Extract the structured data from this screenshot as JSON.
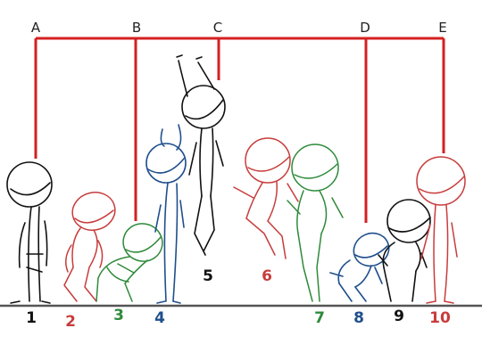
{
  "keyframe_labels": [
    "A",
    "B",
    "C",
    "D",
    "E"
  ],
  "frame_numbers": [
    "1",
    "2",
    "3",
    "4",
    "5",
    "6",
    "7",
    "8",
    "9",
    "10"
  ],
  "colors": {
    "bracket": "#d42020",
    "ground": "#555555",
    "black": "#111111",
    "red": "#c83c3c",
    "green": "#2e8a3a",
    "blue": "#1f4f8c"
  }
}
